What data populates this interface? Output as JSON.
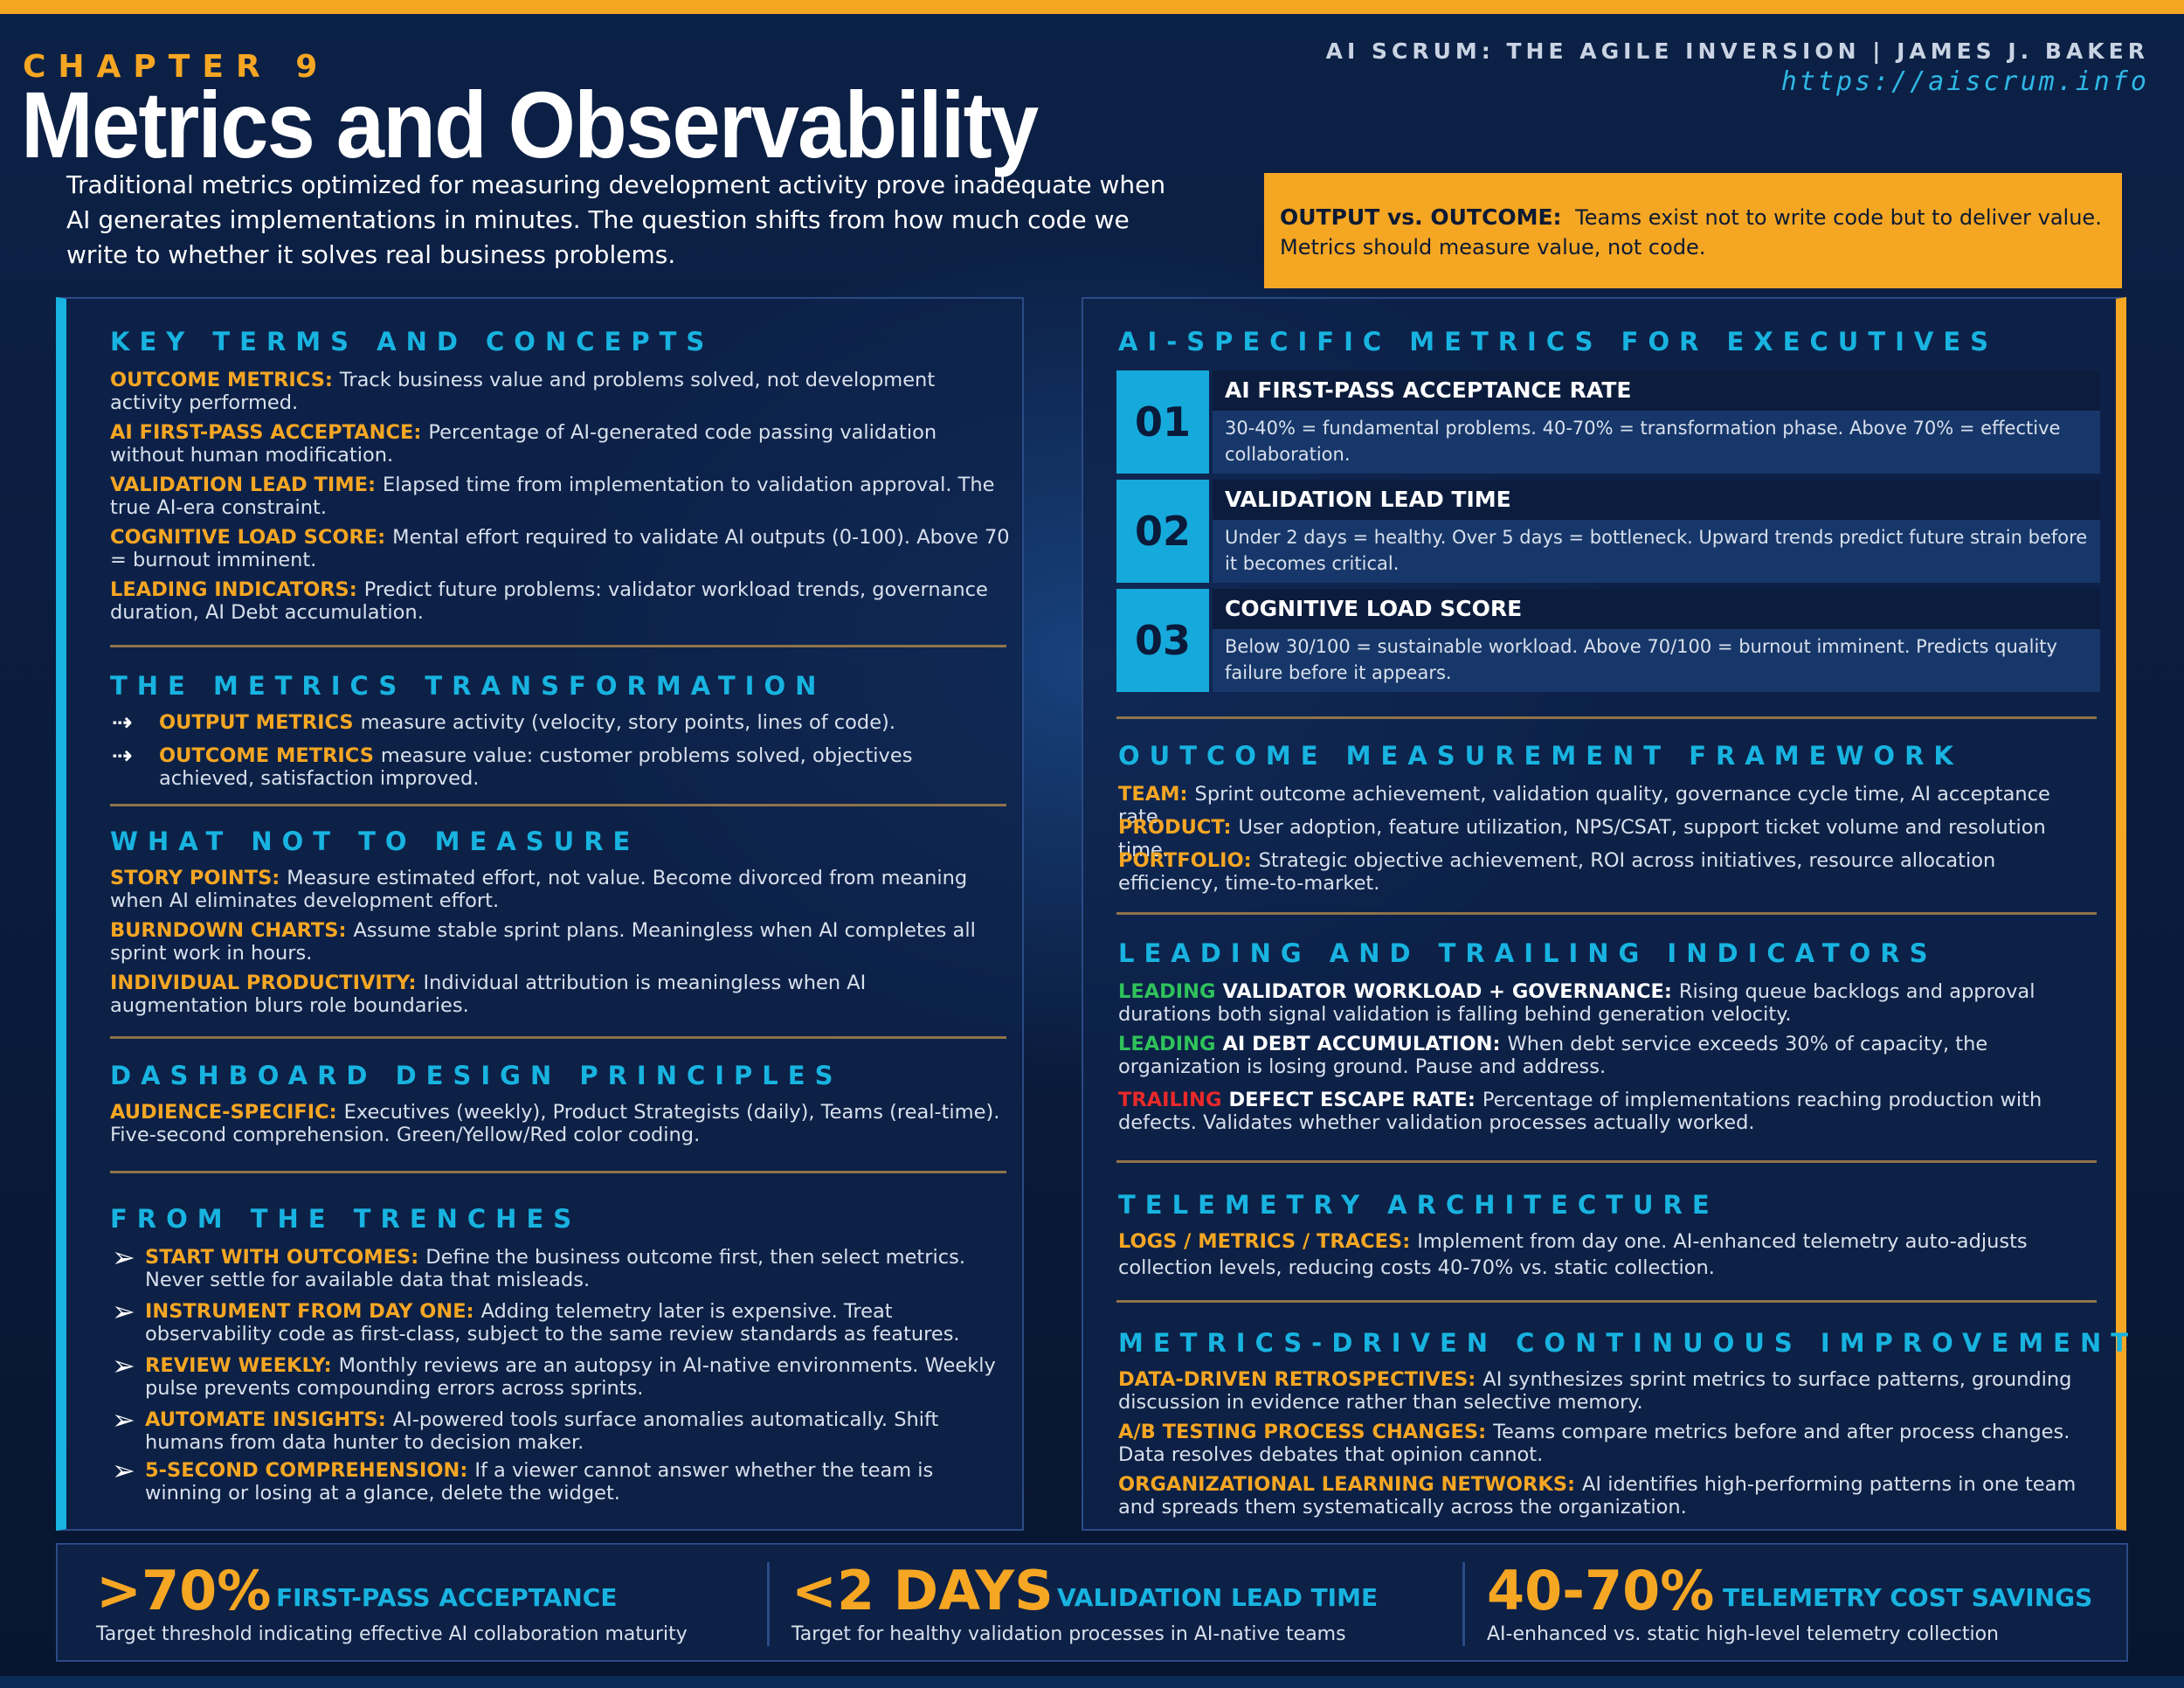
{
  "header": {
    "chapter": "CHAPTER 9",
    "title": "Metrics and Observability",
    "book": "AI SCRUM: THE AGILE INVERSION  |  JAMES J. BAKER",
    "url": "https://aiscrum.info",
    "intro": "Traditional metrics optimized for measuring development activity prove inadequate when AI generates implementations in minutes. The question shifts from how much code we write to whether it solves real business problems."
  },
  "callout": {
    "label": "OUTPUT vs. OUTCOME:",
    "text": "Teams exist not to write code but to deliver value. Metrics should measure value, not code."
  },
  "left": {
    "key_terms": {
      "title": "KEY TERMS AND CONCEPTS",
      "items": [
        {
          "term": "OUTCOME METRICS:",
          "desc": "Track business value and problems solved, not development activity performed."
        },
        {
          "term": "AI FIRST-PASS ACCEPTANCE:",
          "desc": "Percentage of AI-generated code passing validation without human modification."
        },
        {
          "term": "VALIDATION LEAD TIME:",
          "desc": "Elapsed time from implementation to validation approval. The true AI-era constraint."
        },
        {
          "term": "COGNITIVE LOAD SCORE:",
          "desc": "Mental effort required to validate AI outputs (0-100). Above 70 = burnout imminent."
        },
        {
          "term": "LEADING INDICATORS:",
          "desc": "Predict future problems: validator workload trends, governance duration, AI Debt accumulation."
        }
      ]
    },
    "transformation": {
      "title": "THE METRICS TRANSFORMATION",
      "items": [
        {
          "term": "OUTPUT METRICS",
          "desc": "measure activity (velocity, story points, lines of code)."
        },
        {
          "term": "OUTCOME METRICS",
          "desc": "measure value: customer problems solved, objectives achieved, satisfaction improved."
        }
      ]
    },
    "not_measure": {
      "title": "WHAT NOT TO MEASURE",
      "items": [
        {
          "term": "STORY POINTS:",
          "desc": "Measure estimated effort, not value. Become divorced from meaning when AI eliminates development effort."
        },
        {
          "term": "BURNDOWN CHARTS:",
          "desc": "Assume stable sprint plans. Meaningless when AI completes all sprint work in hours."
        },
        {
          "term": "INDIVIDUAL PRODUCTIVITY:",
          "desc": "Individual attribution is meaningless when AI augmentation blurs role boundaries."
        }
      ]
    },
    "dashboard": {
      "title": "DASHBOARD DESIGN PRINCIPLES",
      "items": [
        {
          "term": "AUDIENCE-SPECIFIC:",
          "desc": "Executives (weekly), Product Strategists (daily), Teams (real-time). Five-second comprehension. Green/Yellow/Red color coding."
        }
      ]
    },
    "trenches": {
      "title": "FROM THE TRENCHES",
      "items": [
        {
          "term": "START WITH OUTCOMES:",
          "desc": "Define the business outcome first, then select metrics. Never settle for available data that misleads."
        },
        {
          "term": "INSTRUMENT FROM DAY ONE:",
          "desc": "Adding telemetry later is expensive. Treat observability code as first-class, subject to the same review standards as features."
        },
        {
          "term": "REVIEW WEEKLY:",
          "desc": "Monthly reviews are an autopsy in AI-native environments. Weekly pulse prevents compounding errors across sprints."
        },
        {
          "term": "AUTOMATE INSIGHTS:",
          "desc": "AI-powered tools surface anomalies automatically. Shift humans from data hunter to decision maker."
        },
        {
          "term": "5-SECOND COMPREHENSION:",
          "desc": "If a viewer cannot answer whether the team is winning or losing at a glance, delete the widget."
        }
      ]
    }
  },
  "right": {
    "exec_metrics": {
      "title": "AI-SPECIFIC METRICS FOR EXECUTIVES",
      "items": [
        {
          "num": "01",
          "head": "AI FIRST-PASS ACCEPTANCE RATE",
          "desc": "30-40% = fundamental problems. 40-70% = transformation phase. Above 70% = effective collaboration."
        },
        {
          "num": "02",
          "head": "VALIDATION LEAD TIME",
          "desc": "Under 2 days = healthy. Over 5 days = bottleneck. Upward trends predict future strain before it becomes critical."
        },
        {
          "num": "03",
          "head": "COGNITIVE LOAD SCORE",
          "desc": "Below 30/100 = sustainable workload. Above 70/100 = burnout imminent. Predicts quality failure before it appears."
        }
      ]
    },
    "outcome_framework": {
      "title": "OUTCOME MEASUREMENT FRAMEWORK",
      "items": [
        {
          "term": "TEAM:",
          "desc": "Sprint outcome achievement, validation quality, governance cycle time, AI acceptance rate."
        },
        {
          "term": "PRODUCT:",
          "desc": "User adoption, feature utilization, NPS/CSAT, support ticket volume and resolution time."
        },
        {
          "term": "PORTFOLIO:",
          "desc": "Strategic objective achievement, ROI across initiatives, resource allocation efficiency, time-to-market."
        }
      ]
    },
    "indicators": {
      "title": "LEADING AND TRAILING INDICATORS",
      "items": [
        {
          "tag": "LEADING",
          "term": "VALIDATOR WORKLOAD + GOVERNANCE:",
          "desc": "Rising queue backlogs and approval durations both signal validation is falling behind generation velocity."
        },
        {
          "tag": "LEADING",
          "term": "AI DEBT ACCUMULATION:",
          "desc": "When debt service exceeds 30% of capacity, the organization is losing ground. Pause and address."
        },
        {
          "tag": "TRAILING",
          "term": "DEFECT ESCAPE RATE:",
          "desc": "Percentage of implementations reaching production with defects. Validates whether validation processes actually worked."
        }
      ]
    },
    "telemetry": {
      "title": "TELEMETRY ARCHITECTURE",
      "items": [
        {
          "term": "LOGS / METRICS / TRACES:",
          "desc": "Implement from day one. AI-enhanced telemetry auto-adjusts collection levels, reducing costs 40-70% vs. static collection."
        }
      ]
    },
    "improvement": {
      "title": "METRICS-DRIVEN CONTINUOUS IMPROVEMENT",
      "items": [
        {
          "term": "DATA-DRIVEN RETROSPECTIVES:",
          "desc": "AI synthesizes sprint metrics to surface patterns, grounding discussion in evidence rather than selective memory."
        },
        {
          "term": "A/B TESTING PROCESS CHANGES:",
          "desc": "Teams compare metrics before and after process changes. Data resolves debates that opinion cannot."
        },
        {
          "term": "ORGANIZATIONAL LEARNING NETWORKS:",
          "desc": "AI identifies high-performing patterns in one team and spreads them systematically across the organization."
        }
      ]
    }
  },
  "stats": [
    {
      "big": ">70%",
      "label": "FIRST-PASS ACCEPTANCE",
      "sub": "Target threshold indicating effective AI collaboration maturity"
    },
    {
      "big": "<2 DAYS",
      "label": "VALIDATION LEAD TIME",
      "sub": "Target for healthy validation processes in AI-native teams"
    },
    {
      "big": "40-70%",
      "label": "TELEMETRY COST SAVINGS",
      "sub": "AI-enhanced vs. static high-level telemetry collection"
    }
  ],
  "colors": {
    "accent_orange": "#f5a623",
    "accent_cyan": "#18b3e0",
    "leading": "#2fc25b",
    "trailing": "#e82a2a",
    "background": "#0a1a3a"
  }
}
